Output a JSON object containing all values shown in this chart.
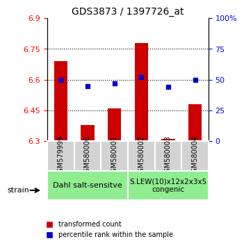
{
  "title": "GDS3873 / 1397726_at",
  "samples": [
    "GSM579999",
    "GSM580000",
    "GSM580001",
    "GSM580002",
    "GSM580003",
    "GSM580004"
  ],
  "red_values": [
    6.69,
    6.38,
    6.46,
    6.78,
    6.31,
    6.48
  ],
  "blue_values": [
    50,
    45,
    47,
    52,
    44,
    50
  ],
  "ylim_left": [
    6.3,
    6.9
  ],
  "ylim_right": [
    0,
    100
  ],
  "yticks_left": [
    6.3,
    6.45,
    6.6,
    6.75,
    6.9
  ],
  "yticks_right": [
    0,
    25,
    50,
    75,
    100
  ],
  "ytick_labels_left": [
    "6.3",
    "6.45",
    "6.6",
    "6.75",
    "6.9"
  ],
  "ytick_labels_right": [
    "0",
    "25",
    "50",
    "75",
    "100%"
  ],
  "hlines": [
    6.45,
    6.6,
    6.75
  ],
  "group1_label": "Dahl salt-sensitve",
  "group2_label": "S.LEW(10)x12x2x3x5\ncongenic",
  "group1_indices": [
    0,
    1,
    2
  ],
  "group2_indices": [
    3,
    4,
    5
  ],
  "group1_color": "#90ee90",
  "group2_color": "#90ee90",
  "sample_box_color": "#d3d3d3",
  "bar_color": "#cc0000",
  "dot_color": "#0000cc",
  "legend_red_label": "transformed count",
  "legend_blue_label": "percentile rank within the sample",
  "strain_label": "strain"
}
